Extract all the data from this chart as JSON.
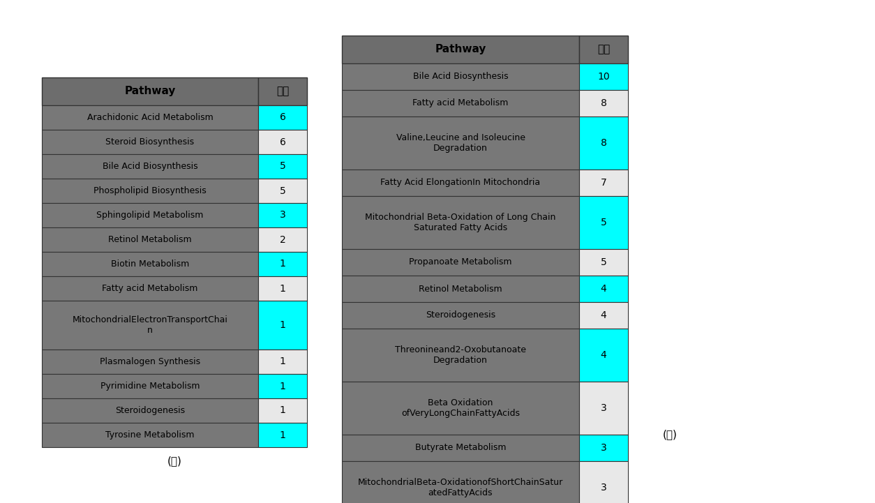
{
  "table_left": {
    "header": [
      "Pathway",
      "갯수"
    ],
    "rows": [
      [
        "Arachidonic Acid Metabolism",
        "6"
      ],
      [
        "Steroid Biosynthesis",
        "6"
      ],
      [
        "Bile Acid Biosynthesis",
        "5"
      ],
      [
        "Phospholipid Biosynthesis",
        "5"
      ],
      [
        "Sphingolipid Metabolism",
        "3"
      ],
      [
        "Retinol Metabolism",
        "2"
      ],
      [
        "Biotin Metabolism",
        "1"
      ],
      [
        "Fatty acid Metabolism",
        "1"
      ],
      [
        "MitochondrialElectronTransportChain",
        "1"
      ],
      [
        "Plasmalogen Synthesis",
        "1"
      ],
      [
        "Pyrimidine Metabolism",
        "1"
      ],
      [
        "Steroidogenesis",
        "1"
      ],
      [
        "Tyrosine Metabolism",
        "1"
      ]
    ],
    "cyan_rows": [
      0,
      2,
      4,
      6,
      8,
      10,
      12
    ],
    "label": "(나)"
  },
  "table_right": {
    "header": [
      "Pathway",
      "갯수"
    ],
    "rows": [
      [
        "Bile Acid Biosynthesis",
        "10"
      ],
      [
        "Fatty acid Metabolism",
        "8"
      ],
      [
        "Valine,Leucine and Isoleucine\nDegradation",
        "8"
      ],
      [
        "Fatty Acid ElongationIn Mitochondria",
        "7"
      ],
      [
        "Mitochondrial Beta-Oxidation of Long Chain\nSaturated Fatty Acids",
        "5"
      ],
      [
        "Propanoate Metabolism",
        "5"
      ],
      [
        "Retinol Metabolism",
        "4"
      ],
      [
        "Steroidogenesis",
        "4"
      ],
      [
        "Threonineand2-Oxobutanoate\nDegradation",
        "4"
      ],
      [
        "Beta Oxidation\nofVeryLongChainFattyAcids",
        "3"
      ],
      [
        "Butyrate Metabolism",
        "3"
      ],
      [
        "MitochondrialBeta-OxidationofShortChainSatur\natedFattyAcids",
        "3"
      ]
    ],
    "cyan_rows": [
      0,
      2,
      4,
      6,
      8,
      10
    ],
    "label": "(가)"
  },
  "colors": {
    "header_bg": "#6d6d6d",
    "row_bg_dark": "#787878",
    "row_bg_light": "#e8e8e8",
    "cyan": "#00ffff",
    "header_text": "#000000",
    "row_text": "#1a1a1a",
    "border": "#333333",
    "white_bg": "#ffffff"
  }
}
